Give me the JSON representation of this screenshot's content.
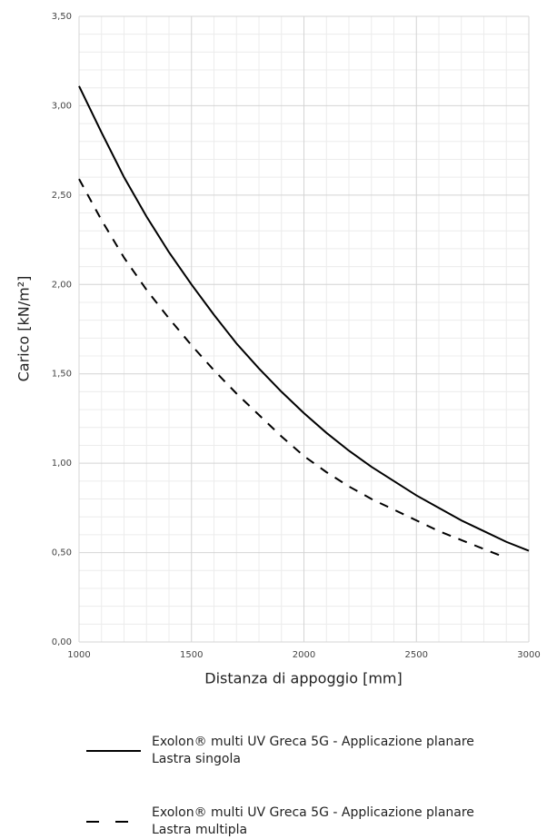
{
  "chart_data": {
    "type": "line",
    "x_label": "Distanza di appoggio [mm]",
    "y_label": "Carico [kN/m²]",
    "x": [
      1000,
      1100,
      1200,
      1300,
      1400,
      1500,
      1600,
      1700,
      1800,
      1900,
      2000,
      2100,
      2200,
      2300,
      2400,
      2500,
      2600,
      2700,
      2800,
      2900,
      3000
    ],
    "series": [
      {
        "name": "Exolon® multi UV Greca 5G - Applicazione planare\nLastra singola",
        "color": "#000000",
        "dash": "solid",
        "values": [
          3.11,
          2.85,
          2.6,
          2.38,
          2.18,
          2.0,
          1.83,
          1.67,
          1.53,
          1.4,
          1.28,
          1.17,
          1.07,
          0.98,
          0.9,
          0.82,
          0.75,
          0.68,
          0.62,
          0.56,
          0.51
        ]
      },
      {
        "name": "Exolon® multi UV Greca 5G - Applicazione planare\nLastra multipla",
        "color": "#000000",
        "dash": "dashed",
        "values": [
          2.59,
          2.36,
          2.15,
          1.97,
          1.81,
          1.66,
          1.52,
          1.39,
          1.27,
          1.15,
          1.04,
          0.95,
          0.87,
          0.8,
          0.74,
          0.68,
          0.62,
          0.57,
          0.52,
          0.47,
          null
        ]
      }
    ],
    "xlim": [
      1000,
      3000
    ],
    "xticks": [
      1000,
      1500,
      2000,
      2500,
      3000
    ],
    "ylim": [
      0,
      3.5
    ],
    "yticks": [
      {
        "value": 0,
        "label": "0,00"
      },
      {
        "value": 0.5,
        "label": "0,50"
      },
      {
        "value": 1,
        "label": "1,00"
      },
      {
        "value": 1.5,
        "label": "1,50"
      },
      {
        "value": 2,
        "label": "2,00"
      },
      {
        "value": 2.5,
        "label": "2,50"
      },
      {
        "value": 3,
        "label": "3,00"
      },
      {
        "value": 3.5,
        "label": "3,50"
      }
    ],
    "grid": true
  }
}
